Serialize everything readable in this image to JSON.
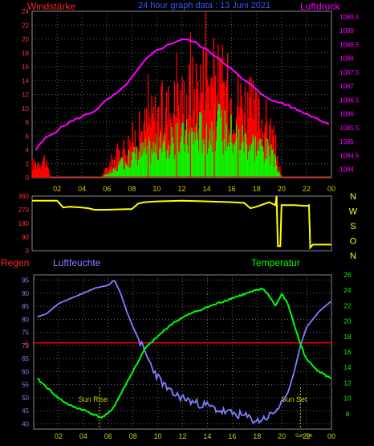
{
  "header": {
    "left_label": "Windstärke",
    "center_label": "24 hour graph data : 13 Juni 2021",
    "right_label": "Luftdruck"
  },
  "lower_header": {
    "regen_label": "Regen",
    "humidity_label": "Luftfeuchte",
    "temperature_label": "Temperatur"
  },
  "colors": {
    "wind_avg": "#00ff00",
    "wind_gust": "#ff0000",
    "wind_hist_low": "#ff0000",
    "pressure": "#ff00ff",
    "direction": "#ffff00",
    "humidity": "#8080ff",
    "temperature": "#00ff00",
    "rain": "#ff0000",
    "axis_left": "#ff3333",
    "axis_right_top": "#ff00ff",
    "axis_blue": "#8080ff",
    "axis_green": "#00ff00",
    "x_ticks": "#cccc00",
    "grid": "#666666"
  },
  "chart_data": [
    {
      "id": "wind_pressure",
      "type": "bar",
      "x_tick_labels": [
        "02",
        "04",
        "06",
        "08",
        "10",
        "12",
        "14",
        "16",
        "18",
        "20",
        "22",
        "00"
      ],
      "x_range_hours": [
        0,
        24
      ],
      "left_axis": {
        "ticks": [
          0,
          2,
          4,
          6,
          8,
          10,
          12,
          14,
          16,
          18,
          20,
          22,
          24
        ],
        "ylim": [
          0,
          24
        ]
      },
      "right_axis": {
        "ticks": [
          "1084",
          "1084.5",
          "1085",
          "1085.5",
          "1086",
          "1086.5",
          "1087",
          "1087.5",
          "1088",
          "1088.5",
          "1089",
          "1089.5"
        ],
        "ylim": [
          1083.7,
          1089.7
        ]
      },
      "series": [
        {
          "name": "pressure",
          "hours": [
            0.3,
            1,
            2,
            3,
            4,
            5,
            6,
            7,
            8,
            9,
            10,
            11,
            12,
            13,
            14,
            15,
            16,
            17,
            18,
            19,
            20,
            21,
            22,
            23,
            24
          ],
          "values": [
            1084.7,
            1085.1,
            1085.4,
            1085.7,
            1085.9,
            1086.1,
            1086.5,
            1086.8,
            1087.3,
            1087.9,
            1088.3,
            1088.5,
            1088.7,
            1088.6,
            1088.3,
            1088.0,
            1087.6,
            1087.2,
            1086.9,
            1086.5,
            1086.4,
            1086.2,
            1086.0,
            1085.8,
            1085.6
          ]
        }
      ],
      "wind_profile": {
        "hours": [
          0.0,
          1.0,
          1.5,
          5.5,
          6.5,
          7.0,
          8.0,
          9.0,
          10.0,
          11.0,
          12.0,
          13.0,
          14.0,
          15.0,
          16.0,
          17.0,
          18.0,
          19.0,
          19.5,
          20.0,
          24.0
        ],
        "avg": [
          0.0,
          0.0,
          0.0,
          0.0,
          1.0,
          2.0,
          3.5,
          4.5,
          5.0,
          5.5,
          6.5,
          7.5,
          8.5,
          8.5,
          7.5,
          6.5,
          5.5,
          4.5,
          2.5,
          0.0,
          0.0
        ],
        "gust": [
          2.0,
          3.0,
          0.0,
          0.0,
          3.0,
          4.0,
          6.0,
          8.0,
          10.0,
          11.0,
          12.0,
          14.0,
          16.0,
          15.0,
          13.0,
          12.0,
          10.0,
          8.0,
          5.0,
          0.0,
          0.0
        ]
      },
      "wind_note": "overnight hours 0-1.5 show low red wind activity around 2-3"
    },
    {
      "id": "wind_direction",
      "type": "line",
      "left_axis": {
        "ticks": [
          0,
          90,
          180,
          270,
          360
        ],
        "ylim": [
          0,
          360
        ]
      },
      "right_labels": [
        "N",
        "W",
        "S",
        "O",
        "N"
      ],
      "series": [
        {
          "name": "direction",
          "hours": [
            0,
            2,
            2.5,
            3,
            4,
            4.5,
            5,
            6,
            8,
            8.5,
            9,
            10,
            12,
            14,
            16,
            17,
            17.5,
            18,
            19,
            19.5,
            19.6,
            19.7,
            19.9,
            20,
            21,
            22,
            22.2,
            22.3,
            22.5,
            23,
            24
          ],
          "values": [
            330,
            330,
            285,
            290,
            285,
            280,
            270,
            270,
            275,
            310,
            320,
            325,
            330,
            325,
            320,
            315,
            280,
            290,
            320,
            300,
            360,
            30,
            30,
            300,
            300,
            295,
            300,
            20,
            40,
            40,
            40
          ]
        }
      ]
    },
    {
      "id": "humidity_temperature",
      "type": "line",
      "x_tick_labels": [
        "02",
        "04",
        "06",
        "08",
        "10",
        "12",
        "14",
        "16",
        "18",
        "20",
        "22",
        "00"
      ],
      "left_axis": {
        "ticks": [
          40,
          45,
          50,
          55,
          60,
          65,
          70,
          75,
          80,
          85,
          90,
          95
        ],
        "ylim": [
          38,
          97
        ]
      },
      "right_axis": {
        "ticks": [
          8,
          10,
          12,
          14,
          16,
          18,
          20,
          22,
          24,
          26
        ],
        "ylim": [
          6,
          26
        ]
      },
      "rain_marker": "0",
      "rain_level_y_left": 71,
      "annotations": [
        {
          "text": "Sun Rise",
          "hour": 5.3
        },
        {
          "text": "Sun Set",
          "hour": 21.5
        },
        {
          "text": "Sun Set",
          "hour": 21.9,
          "small": true
        }
      ],
      "series": [
        {
          "name": "humidity",
          "hours": [
            0.3,
            1,
            2,
            3,
            4,
            5,
            6,
            6.5,
            7,
            7.5,
            8,
            8.5,
            9,
            9.5,
            10,
            11,
            12,
            13,
            14,
            15,
            16,
            17,
            18,
            19,
            19.5,
            20,
            20.5,
            21,
            21.5,
            22,
            23,
            24
          ],
          "values": [
            81,
            82,
            86,
            88,
            90,
            92,
            93,
            95,
            90,
            83,
            77,
            72,
            67,
            62,
            58,
            52,
            50,
            48,
            47,
            45,
            44,
            43,
            41,
            43,
            45,
            48,
            52,
            60,
            70,
            77,
            83,
            87
          ]
        },
        {
          "name": "temperature",
          "hours": [
            0.3,
            1,
            2,
            3,
            4,
            5,
            5.5,
            6,
            6.5,
            7,
            7.5,
            8,
            8.5,
            9,
            10,
            11,
            12,
            13,
            14,
            15,
            16,
            17,
            18,
            18.5,
            19,
            19.5,
            20,
            20.5,
            21,
            21.5,
            22,
            23,
            24
          ],
          "values": [
            12.5,
            11.5,
            10,
            9,
            8.5,
            7.8,
            7.5,
            8,
            9,
            10.5,
            12,
            13.5,
            15,
            16.5,
            18,
            19.5,
            20.5,
            21.2,
            21.8,
            22.4,
            23,
            23.5,
            24,
            24.2,
            23.2,
            22,
            23.5,
            22.2,
            19.5,
            17,
            15,
            13.5,
            12.5
          ]
        }
      ]
    }
  ]
}
